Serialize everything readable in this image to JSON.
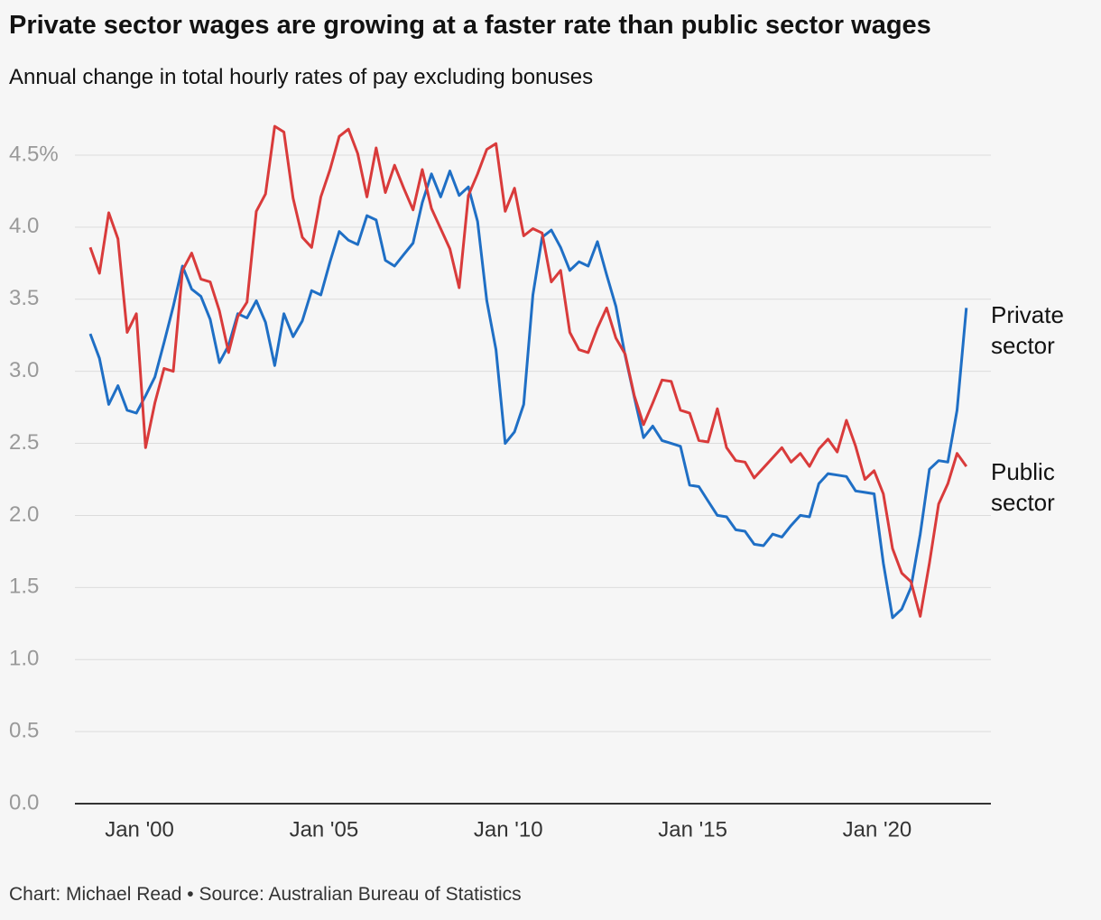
{
  "chart_data": {
    "type": "line",
    "title": "Private sector wages are growing at a faster rate than public sector wages",
    "subtitle": "Annual change in total hourly rates of pay excluding bonuses",
    "source": "Chart: Michael Read • Source: Australian Bureau of Statistics",
    "x": [
      "1998-09",
      "1998-12",
      "1999-03",
      "1999-06",
      "1999-09",
      "1999-12",
      "2000-03",
      "2000-06",
      "2000-09",
      "2000-12",
      "2001-03",
      "2001-06",
      "2001-09",
      "2001-12",
      "2002-03",
      "2002-06",
      "2002-09",
      "2002-12",
      "2003-03",
      "2003-06",
      "2003-09",
      "2003-12",
      "2004-03",
      "2004-06",
      "2004-09",
      "2004-12",
      "2005-03",
      "2005-06",
      "2005-09",
      "2005-12",
      "2006-03",
      "2006-06",
      "2006-09",
      "2006-12",
      "2007-03",
      "2007-06",
      "2007-09",
      "2007-12",
      "2008-03",
      "2008-06",
      "2008-09",
      "2008-12",
      "2009-03",
      "2009-06",
      "2009-09",
      "2009-12",
      "2010-03",
      "2010-06",
      "2010-09",
      "2010-12",
      "2011-03",
      "2011-06",
      "2011-09",
      "2011-12",
      "2012-03",
      "2012-06",
      "2012-09",
      "2012-12",
      "2013-03",
      "2013-06",
      "2013-09",
      "2013-12",
      "2014-03",
      "2014-06",
      "2014-09",
      "2014-12",
      "2015-03",
      "2015-06",
      "2015-09",
      "2015-12",
      "2016-03",
      "2016-06",
      "2016-09",
      "2016-12",
      "2017-03",
      "2017-06",
      "2017-09",
      "2017-12",
      "2018-03",
      "2018-06",
      "2018-09",
      "2018-12",
      "2019-03",
      "2019-06",
      "2019-09",
      "2019-12",
      "2020-03",
      "2020-06",
      "2020-09",
      "2020-12",
      "2021-03",
      "2021-06",
      "2021-09",
      "2021-12",
      "2022-03",
      "2022-06"
    ],
    "series": [
      {
        "name": "Private sector",
        "color": "#1f6fc5",
        "values": [
          3.26,
          3.09,
          2.77,
          2.9,
          2.73,
          2.71,
          2.83,
          2.96,
          3.2,
          3.45,
          3.73,
          3.57,
          3.52,
          3.36,
          3.06,
          3.18,
          3.4,
          3.37,
          3.49,
          3.34,
          3.04,
          3.4,
          3.24,
          3.35,
          3.56,
          3.53,
          3.76,
          3.97,
          3.91,
          3.88,
          4.08,
          4.05,
          3.77,
          3.73,
          3.81,
          3.89,
          4.17,
          4.37,
          4.21,
          4.39,
          4.22,
          4.28,
          4.04,
          3.49,
          3.15,
          2.5,
          2.58,
          2.77,
          3.53,
          3.93,
          3.98,
          3.86,
          3.7,
          3.76,
          3.73,
          3.9,
          3.67,
          3.45,
          3.11,
          2.82,
          2.54,
          2.62,
          2.52,
          2.5,
          2.48,
          2.21,
          2.2,
          2.1,
          2.0,
          1.99,
          1.9,
          1.89,
          1.8,
          1.79,
          1.87,
          1.85,
          1.93,
          2.0,
          1.99,
          2.22,
          2.29,
          2.28,
          2.27,
          2.17,
          2.16,
          2.15,
          1.67,
          1.29,
          1.35,
          1.5,
          1.87,
          2.32,
          2.38,
          2.37,
          2.73,
          3.44
        ]
      },
      {
        "name": "Public sector",
        "color": "#d93b3b",
        "values": [
          3.86,
          3.68,
          4.1,
          3.92,
          3.27,
          3.4,
          2.47,
          2.78,
          3.02,
          3.0,
          3.7,
          3.82,
          3.64,
          3.62,
          3.42,
          3.13,
          3.38,
          3.48,
          4.11,
          4.23,
          4.7,
          4.66,
          4.2,
          3.93,
          3.86,
          4.21,
          4.4,
          4.63,
          4.68,
          4.51,
          4.21,
          4.55,
          4.24,
          4.43,
          4.27,
          4.12,
          4.4,
          4.13,
          3.99,
          3.85,
          3.58,
          4.22,
          4.37,
          4.54,
          4.58,
          4.11,
          4.27,
          3.94,
          3.99,
          3.96,
          3.62,
          3.7,
          3.27,
          3.15,
          3.13,
          3.3,
          3.44,
          3.23,
          3.12,
          2.83,
          2.63,
          2.78,
          2.94,
          2.93,
          2.73,
          2.71,
          2.52,
          2.51,
          2.74,
          2.47,
          2.38,
          2.37,
          2.26,
          2.33,
          2.4,
          2.47,
          2.37,
          2.43,
          2.34,
          2.46,
          2.53,
          2.44,
          2.66,
          2.48,
          2.25,
          2.31,
          2.15,
          1.77,
          1.6,
          1.54,
          1.3,
          1.67,
          2.08,
          2.22,
          2.43,
          2.34
        ]
      }
    ],
    "xlim": [
      "1998-04",
      "2023-02"
    ],
    "xticks": [
      {
        "value": "2000-01",
        "label": "Jan '00"
      },
      {
        "value": "2005-01",
        "label": "Jan '05"
      },
      {
        "value": "2010-01",
        "label": "Jan '10"
      },
      {
        "value": "2015-01",
        "label": "Jan '15"
      },
      {
        "value": "2020-01",
        "label": "Jan '20"
      }
    ],
    "ylim": [
      0,
      4.5
    ],
    "yticks": [
      {
        "value": 0,
        "label": "0.0"
      },
      {
        "value": 0.5,
        "label": "0.5"
      },
      {
        "value": 1,
        "label": "1.0"
      },
      {
        "value": 1.5,
        "label": "1.5"
      },
      {
        "value": 2,
        "label": "2.0"
      },
      {
        "value": 2.5,
        "label": "2.5"
      },
      {
        "value": 3,
        "label": "3.0"
      },
      {
        "value": 3.5,
        "label": "3.5"
      },
      {
        "value": 4,
        "label": "4.0"
      },
      {
        "value": 4.5,
        "label": "4.5%"
      }
    ],
    "grid": true
  }
}
